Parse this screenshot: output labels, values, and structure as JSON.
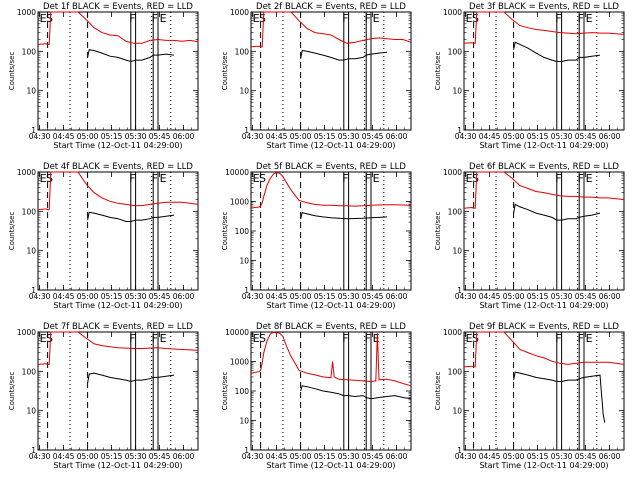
{
  "chart_data": {
    "type": "line",
    "layout": "3x3 grid",
    "shared": {
      "xlabel": "Start Time (12-Oct-11 04:29:00)",
      "ylabel": "Counts/sec",
      "xticks": [
        "04:30",
        "04:45",
        "05:00",
        "05:15",
        "05:30",
        "05:45",
        "06:00"
      ],
      "yticks": [
        "1",
        "10",
        "100",
        "1000"
      ],
      "yscale": "log",
      "ylim": [
        1,
        1000
      ],
      "xlim_minutes_after_0429": [
        0,
        100
      ],
      "series_colors": {
        "events": "#000000",
        "lld": "#e00000"
      },
      "markers": {
        "dashed": [
          6,
          31
        ],
        "dotted": [
          20,
          71,
          83
        ],
        "solid_pairs": [
          [
            58,
            61
          ],
          [
            72,
            75
          ]
        ],
        "letters": [
          {
            "t": "E",
            "x": 1
          },
          {
            "t": "S",
            "x": 5
          },
          {
            "t": "F",
            "x": 57
          },
          {
            "t": "F",
            "x": 71
          },
          {
            "t": "E",
            "x": 76
          }
        ]
      }
    },
    "panels": [
      {
        "title": "Det 1f BLACK = Events, RED = LLD",
        "ylim": [
          1,
          1000
        ],
        "series": [
          {
            "key": "lld",
            "x": [
              0,
              5,
              6,
              7,
              8,
              12,
              15,
              20,
              25,
              30,
              35,
              40,
              45,
              50,
              55,
              60,
              65,
              70,
              75,
              80,
              85,
              90,
              95,
              100
            ],
            "values": [
              150,
              155,
              150,
              150,
              1000,
              1000,
              1000,
              1000,
              1000,
              650,
              400,
              300,
              260,
              250,
              180,
              160,
              160,
              190,
              200,
              190,
              190,
              180,
              190,
              175
            ]
          },
          {
            "key": "events",
            "x": [
              31,
              32,
              35,
              40,
              45,
              50,
              55,
              58,
              61,
              65,
              70,
              72,
              75,
              80,
              85
            ],
            "values": [
              70,
              110,
              105,
              90,
              75,
              70,
              60,
              55,
              60,
              60,
              70,
              80,
              80,
              85,
              80
            ]
          }
        ]
      },
      {
        "title": "Det 2f BLACK = Events, RED = LLD",
        "ylim": [
          1,
          1000
        ],
        "series": [
          {
            "key": "lld",
            "x": [
              0,
              5,
              6,
              7,
              8,
              12,
              15,
              20,
              25,
              30,
              35,
              40,
              45,
              50,
              55,
              60,
              65,
              70,
              75,
              80,
              85,
              90,
              95,
              100
            ],
            "values": [
              130,
              135,
              130,
              130,
              1000,
              1000,
              1000,
              1000,
              1000,
              600,
              380,
              300,
              280,
              260,
              200,
              160,
              170,
              190,
              210,
              220,
              210,
              200,
              200,
              170
            ]
          },
          {
            "key": "events",
            "x": [
              31,
              32,
              35,
              40,
              45,
              50,
              55,
              58,
              61,
              65,
              70,
              72,
              75,
              80,
              85
            ],
            "values": [
              65,
              105,
              100,
              90,
              80,
              70,
              60,
              60,
              65,
              65,
              70,
              80,
              85,
              90,
              95
            ]
          }
        ]
      },
      {
        "title": "Det 3f BLACK = Events, RED = LLD",
        "ylim": [
          1,
          1000
        ],
        "series": [
          {
            "key": "lld",
            "x": [
              0,
              5,
              6,
              7,
              8,
              12,
              15,
              20,
              25,
              30,
              35,
              40,
              45,
              50,
              55,
              60,
              65,
              70,
              75,
              80,
              85,
              90,
              95,
              100
            ],
            "values": [
              160,
              165,
              160,
              160,
              1000,
              1000,
              1000,
              1000,
              1000,
              650,
              450,
              400,
              360,
              340,
              320,
              300,
              290,
              280,
              290,
              300,
              290,
              290,
              280,
              270
            ]
          },
          {
            "key": "events",
            "x": [
              31,
              32,
              35,
              40,
              45,
              50,
              55,
              58,
              61,
              65,
              70,
              72,
              75,
              80,
              85
            ],
            "values": [
              110,
              170,
              150,
              120,
              90,
              70,
              60,
              55,
              55,
              60,
              60,
              70,
              70,
              75,
              80
            ]
          }
        ]
      },
      {
        "title": "Det 4f BLACK = Events, RED = LLD",
        "ylim": [
          1,
          1000
        ],
        "series": [
          {
            "key": "lld",
            "x": [
              0,
              5,
              6,
              7,
              8,
              12,
              15,
              20,
              25,
              30,
              35,
              40,
              45,
              50,
              55,
              60,
              65,
              70,
              75,
              80,
              85,
              90,
              95,
              100
            ],
            "values": [
              110,
              115,
              110,
              110,
              1000,
              1000,
              1000,
              1000,
              1000,
              500,
              300,
              220,
              180,
              160,
              150,
              140,
              140,
              150,
              160,
              170,
              170,
              170,
              160,
              150
            ]
          },
          {
            "key": "events",
            "x": [
              31,
              32,
              35,
              40,
              45,
              50,
              55,
              58,
              61,
              65,
              70,
              72,
              75,
              80,
              85
            ],
            "values": [
              60,
              95,
              90,
              80,
              70,
              65,
              55,
              55,
              60,
              60,
              65,
              70,
              70,
              75,
              80
            ]
          }
        ]
      },
      {
        "title": "Det 5f BLACK = Events, RED = LLD",
        "ylim": [
          1,
          10000
        ],
        "series": [
          {
            "key": "lld",
            "x": [
              0,
              5,
              6,
              7,
              8,
              10,
              12,
              14,
              16,
              18,
              20,
              22,
              25,
              28,
              30,
              35,
              40,
              45,
              50,
              55,
              60,
              65,
              70,
              75,
              80,
              85,
              90,
              95,
              100
            ],
            "values": [
              600,
              650,
              700,
              900,
              1500,
              3500,
              6000,
              8500,
              9500,
              9000,
              7000,
              4500,
              2500,
              1500,
              1100,
              900,
              800,
              750,
              750,
              720,
              720,
              700,
              720,
              750,
              760,
              780,
              770,
              760,
              740
            ]
          },
          {
            "key": "events",
            "x": [
              31,
              32,
              35,
              40,
              45,
              50,
              55,
              60,
              65,
              70,
              75,
              80,
              85
            ],
            "values": [
              250,
              420,
              380,
              330,
              300,
              280,
              270,
              260,
              265,
              270,
              280,
              290,
              300
            ]
          }
        ]
      },
      {
        "title": "Det 6f BLACK = Events, RED = LLD",
        "ylim": [
          1,
          1000
        ],
        "series": [
          {
            "key": "lld",
            "x": [
              0,
              5,
              6,
              7,
              8,
              12,
              15,
              20,
              25,
              30,
              35,
              40,
              45,
              50,
              55,
              60,
              65,
              70,
              75,
              80,
              85,
              90,
              95,
              100
            ],
            "values": [
              120,
              125,
              120,
              120,
              1000,
              1000,
              1000,
              1000,
              1000,
              700,
              450,
              380,
              320,
              300,
              270,
              250,
              240,
              240,
              230,
              230,
              220,
              220,
              210,
              200
            ]
          },
          {
            "key": "events",
            "x": [
              31,
              32,
              35,
              40,
              45,
              50,
              55,
              58,
              61,
              65,
              70,
              72,
              75,
              80,
              85
            ],
            "values": [
              90,
              150,
              130,
              110,
              90,
              80,
              70,
              60,
              60,
              65,
              65,
              70,
              75,
              80,
              90
            ]
          }
        ]
      },
      {
        "title": "Det 7f BLACK = Events, RED = LLD",
        "ylim": [
          1,
          1000
        ],
        "series": [
          {
            "key": "lld",
            "x": [
              0,
              5,
              6,
              7,
              8,
              12,
              15,
              20,
              25,
              30,
              35,
              40,
              45,
              50,
              55,
              60,
              65,
              70,
              75,
              80,
              85,
              90,
              95,
              100
            ],
            "values": [
              150,
              155,
              150,
              150,
              1000,
              1000,
              1000,
              1000,
              1000,
              700,
              500,
              450,
              420,
              400,
              390,
              380,
              380,
              390,
              400,
              380,
              370,
              360,
              350,
              340
            ]
          },
          {
            "key": "events",
            "x": [
              31,
              32,
              35,
              40,
              45,
              50,
              55,
              58,
              61,
              65,
              70,
              72,
              75,
              80,
              85
            ],
            "values": [
              50,
              85,
              90,
              80,
              70,
              65,
              60,
              55,
              60,
              60,
              65,
              70,
              70,
              75,
              80
            ]
          }
        ]
      },
      {
        "title": "Det 8f BLACK = Events, RED = LLD",
        "ylim": [
          1,
          10000
        ],
        "series": [
          {
            "key": "lld",
            "x": [
              0,
              5,
              6,
              7,
              8,
              10,
              12,
              14,
              16,
              18,
              20,
              22,
              25,
              28,
              30,
              35,
              40,
              45,
              50,
              51,
              52,
              55,
              60,
              65,
              70,
              75,
              78,
              79,
              80,
              85,
              90,
              95,
              100
            ],
            "values": [
              400,
              450,
              500,
              900,
              2000,
              5000,
              8500,
              9800,
              9500,
              9000,
              7000,
              3500,
              1500,
              800,
              500,
              400,
              350,
              300,
              280,
              1000,
              300,
              250,
              240,
              230,
              220,
              210,
              220,
              9000,
              240,
              250,
              220,
              180,
              150
            ]
          },
          {
            "key": "events",
            "x": [
              31,
              32,
              35,
              40,
              45,
              50,
              55,
              58,
              61,
              65,
              70,
              72,
              75,
              80,
              85,
              90,
              95,
              100
            ],
            "values": [
              100,
              150,
              140,
              120,
              100,
              90,
              80,
              70,
              70,
              65,
              70,
              60,
              55,
              60,
              65,
              70,
              60,
              55
            ]
          }
        ]
      },
      {
        "title": "Det 9f BLACK = Events, RED = LLD",
        "ylim": [
          1,
          1000
        ],
        "series": [
          {
            "key": "lld",
            "x": [
              0,
              5,
              6,
              7,
              8,
              12,
              15,
              20,
              25,
              30,
              35,
              40,
              45,
              50,
              55,
              60,
              65,
              70,
              75,
              80,
              85,
              90,
              95,
              100
            ],
            "values": [
              130,
              135,
              130,
              130,
              1000,
              1000,
              1000,
              1000,
              1000,
              600,
              360,
              300,
              250,
              220,
              180,
              160,
              150,
              160,
              170,
              170,
              170,
              170,
              160,
              150
            ]
          },
          {
            "key": "events",
            "x": [
              31,
              32,
              35,
              40,
              45,
              50,
              55,
              58,
              61,
              65,
              70,
              72,
              75,
              80,
              85,
              87,
              88
            ],
            "values": [
              60,
              95,
              90,
              80,
              70,
              65,
              60,
              55,
              55,
              60,
              60,
              65,
              70,
              75,
              80,
              8,
              5
            ]
          }
        ]
      }
    ]
  }
}
